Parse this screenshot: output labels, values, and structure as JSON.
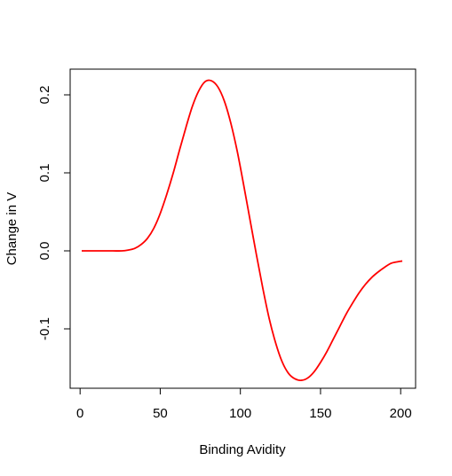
{
  "chart_data": {
    "type": "line",
    "title": "",
    "xlabel": "Binding Avidity",
    "ylabel": "Change in V",
    "xlim": [
      1,
      201
    ],
    "ylim": [
      -0.17,
      0.22
    ],
    "x_ticks": [
      50,
      100,
      150,
      200
    ],
    "x_tick_labels": [
      "50",
      "100",
      "150",
      "200"
    ],
    "y_ticks": [
      -0.1,
      0.0,
      0.1,
      0.2
    ],
    "y_tick_labels": [
      "-0.1",
      "0.0",
      "0.1",
      "0.2"
    ],
    "grid": false,
    "legend": "none",
    "colors": {
      "line": "#ff0000",
      "axis": "#000000"
    },
    "series": [
      {
        "points": [
          [
            1,
            0.0
          ],
          [
            10,
            0.0
          ],
          [
            20,
            0.0
          ],
          [
            26,
            0.0
          ],
          [
            30,
            0.001
          ],
          [
            34,
            0.003
          ],
          [
            38,
            0.008
          ],
          [
            42,
            0.016
          ],
          [
            46,
            0.029
          ],
          [
            50,
            0.048
          ],
          [
            54,
            0.072
          ],
          [
            58,
            0.099
          ],
          [
            62,
            0.129
          ],
          [
            66,
            0.158
          ],
          [
            70,
            0.185
          ],
          [
            74,
            0.205
          ],
          [
            78,
            0.217
          ],
          [
            82,
            0.218
          ],
          [
            86,
            0.21
          ],
          [
            90,
            0.192
          ],
          [
            94,
            0.164
          ],
          [
            98,
            0.128
          ],
          [
            102,
            0.085
          ],
          [
            106,
            0.04
          ],
          [
            110,
            -0.005
          ],
          [
            114,
            -0.048
          ],
          [
            118,
            -0.087
          ],
          [
            122,
            -0.118
          ],
          [
            126,
            -0.142
          ],
          [
            130,
            -0.157
          ],
          [
            134,
            -0.164
          ],
          [
            138,
            -0.166
          ],
          [
            142,
            -0.163
          ],
          [
            146,
            -0.155
          ],
          [
            150,
            -0.143
          ],
          [
            154,
            -0.129
          ],
          [
            158,
            -0.113
          ],
          [
            162,
            -0.097
          ],
          [
            166,
            -0.081
          ],
          [
            170,
            -0.067
          ],
          [
            174,
            -0.054
          ],
          [
            178,
            -0.043
          ],
          [
            182,
            -0.034
          ],
          [
            186,
            -0.027
          ],
          [
            190,
            -0.021
          ],
          [
            194,
            -0.016
          ],
          [
            198,
            -0.014
          ],
          [
            201,
            -0.013
          ]
        ]
      }
    ]
  }
}
